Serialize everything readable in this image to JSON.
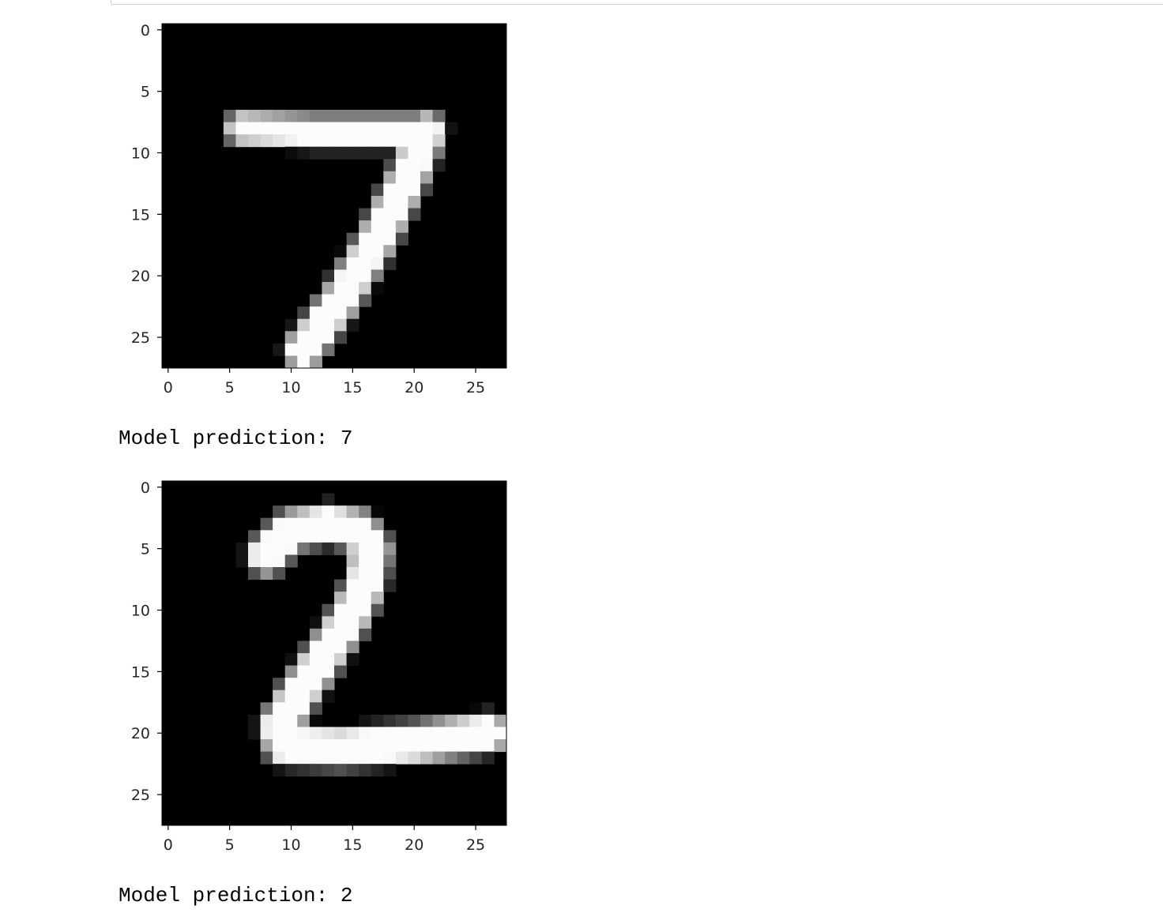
{
  "outputs": [
    {
      "predicted_digit": 7,
      "text": "Model prediction: 7",
      "chart_data": {
        "type": "heatmap",
        "colormap": "gray",
        "image_size": [
          28,
          28
        ],
        "xticks": [
          "0",
          "5",
          "10",
          "15",
          "20",
          "25"
        ],
        "yticks": [
          "0",
          "5",
          "10",
          "15",
          "20",
          "25"
        ],
        "xlim": [
          -0.5,
          27.5
        ],
        "ylim": [
          27.5,
          -0.5
        ],
        "strokes": [
          {
            "points": [
              [
                6,
                8
              ],
              [
                12,
                8.3
              ],
              [
                21,
                8.3
              ]
            ],
            "width": 1.5
          },
          {
            "points": [
              [
                21,
                8.3
              ],
              [
                19.5,
                12
              ],
              [
                17,
                17
              ],
              [
                14,
                22
              ],
              [
                11,
                26
              ]
            ],
            "width": 2.0
          }
        ]
      }
    },
    {
      "predicted_digit": 2,
      "text": "Model prediction: 2",
      "chart_data": {
        "type": "heatmap",
        "colormap": "gray",
        "image_size": [
          28,
          28
        ],
        "xticks": [
          "0",
          "5",
          "10",
          "15",
          "20",
          "25"
        ],
        "yticks": [
          "0",
          "5",
          "10",
          "15",
          "20",
          "25"
        ],
        "xlim": [
          -0.5,
          27.5
        ],
        "ylim": [
          27.5,
          -0.5
        ],
        "strokes": [
          {
            "points": [
              [
                8,
                5.5
              ],
              [
                10,
                3.5
              ],
              [
                13,
                3
              ],
              [
                15.5,
                3.5
              ],
              [
                16.5,
                5
              ],
              [
                16,
                8
              ],
              [
                14.5,
                11
              ],
              [
                12.5,
                14
              ],
              [
                10.5,
                17
              ],
              [
                9,
                19.5
              ],
              [
                9.5,
                21
              ],
              [
                14,
                21.2
              ],
              [
                20,
                20.8
              ],
              [
                26,
                20
              ]
            ],
            "width": 2.1
          }
        ]
      }
    }
  ]
}
